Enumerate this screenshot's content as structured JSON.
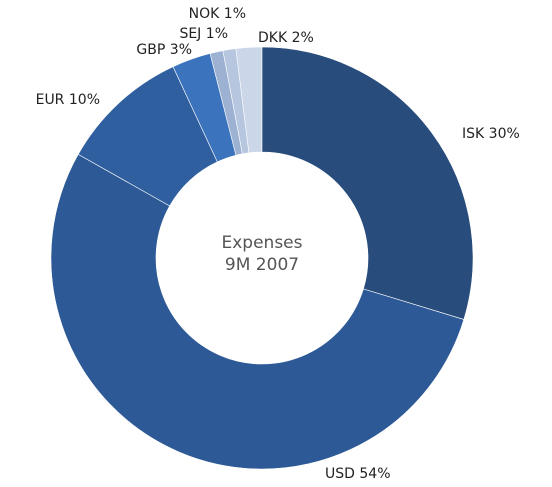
{
  "chart_data": {
    "type": "donut",
    "title": "Expenses",
    "subtitle": "9M 2007",
    "categories": [
      "ISK",
      "USD",
      "EUR",
      "GBP",
      "SEJ",
      "NOK",
      "DKK"
    ],
    "values": [
      30,
      54,
      10,
      3,
      1,
      1,
      2
    ],
    "value_labels": [
      "30%",
      "54%",
      "10%",
      "3%",
      "1%",
      "1%",
      "2%"
    ],
    "colors": [
      "#284c7c",
      "#2d5a96",
      "#305fa0",
      "#3b73bd",
      "#9db2d2",
      "#b6c6df",
      "#cbd6e9"
    ]
  }
}
